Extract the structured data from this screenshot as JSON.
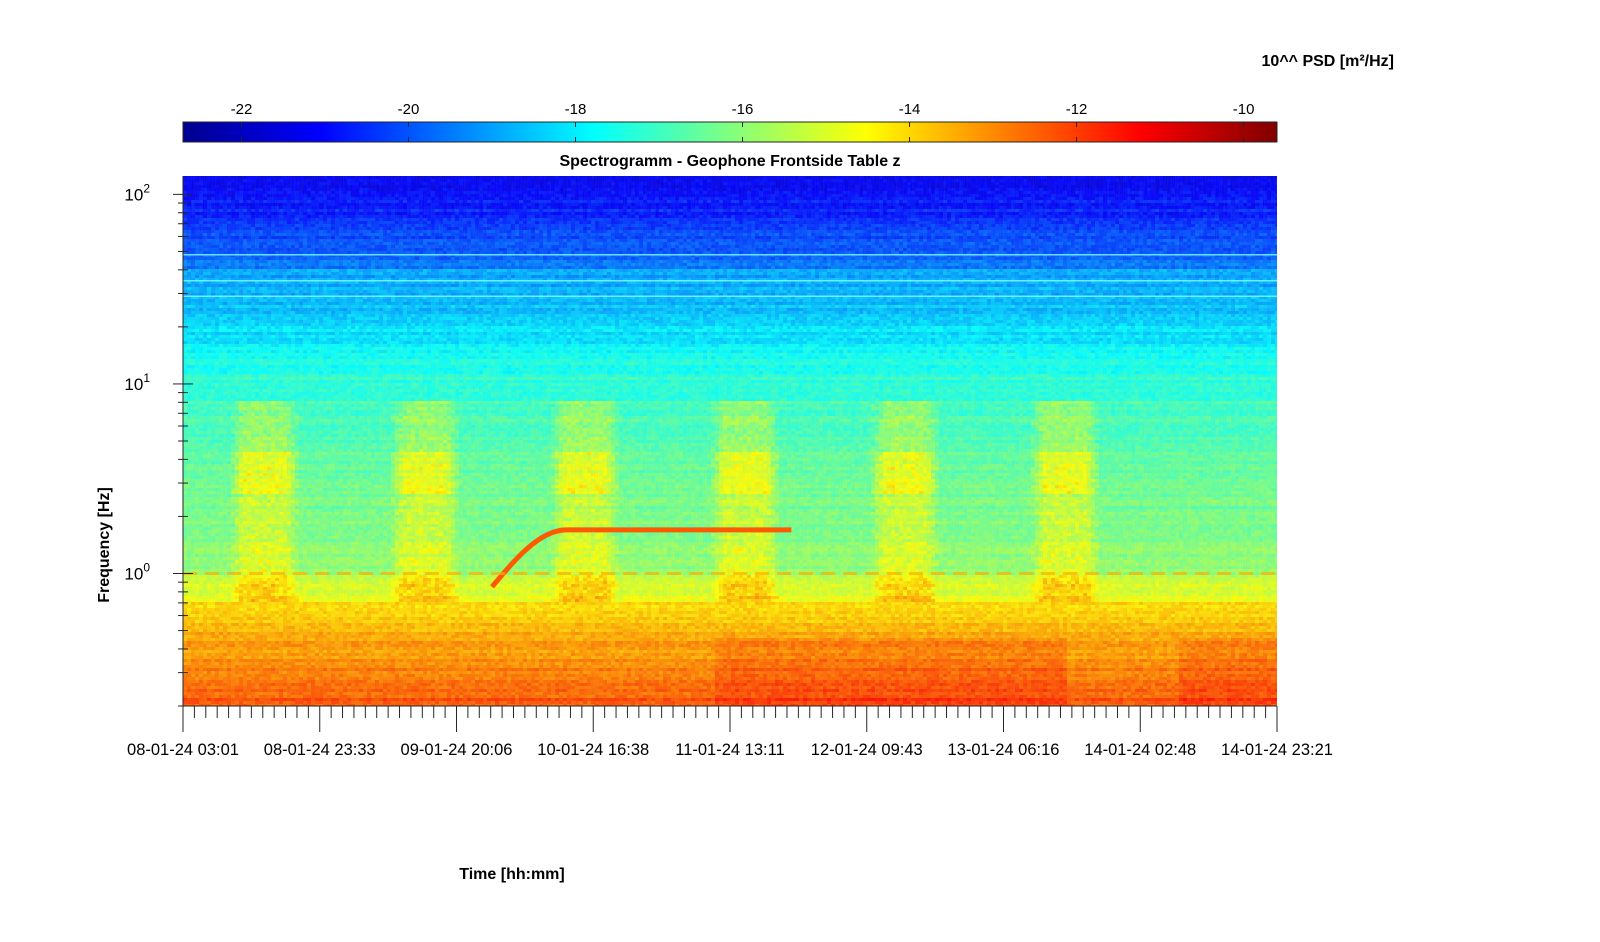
{
  "chart_data": {
    "type": "heatmap",
    "title": "Spectrogramm - Geophone Frontside Table z",
    "xlabel": "Time [hh:mm]",
    "ylabel": "Frequency [Hz]",
    "colorbar": {
      "label": "10^^ PSD [m²/Hz]",
      "range": [
        -22.7,
        -9.6
      ],
      "ticks": [
        -22,
        -20,
        -18,
        -16,
        -14,
        -12,
        -10
      ],
      "tick_labels": [
        "-22",
        "-20",
        "-18",
        "-16",
        "-14",
        "-12",
        "-10"
      ],
      "colormap": "jet",
      "placement": "top"
    },
    "x_axis": {
      "tick_labels": [
        "08-01-24 03:01",
        "08-01-24 23:33",
        "09-01-24 20:06",
        "10-01-24 16:38",
        "11-01-24 13:11",
        "12-01-24 09:43",
        "13-01-24 06:16",
        "14-01-24 02:48",
        "14-01-24 23:21"
      ],
      "minor_ticks_per_interval": 12
    },
    "y_axis": {
      "scale": "log",
      "range": [
        0.2,
        125
      ],
      "major_ticks": [
        1,
        10,
        100
      ],
      "major_tick_labels": [
        {
          "base": "10",
          "exp": "0"
        },
        {
          "base": "10",
          "exp": "1"
        },
        {
          "base": "10",
          "exp": "2"
        }
      ]
    },
    "features": {
      "daily_activity_bursts": [
        {
          "start_day": 0.28,
          "end_day": 0.72,
          "freq_range_hz": [
            0.7,
            8
          ]
        },
        {
          "start_day": 1.28,
          "end_day": 1.72,
          "freq_range_hz": [
            0.7,
            8
          ]
        },
        {
          "start_day": 2.28,
          "end_day": 2.72,
          "freq_range_hz": [
            0.7,
            8
          ]
        },
        {
          "start_day": 3.28,
          "end_day": 3.72,
          "freq_range_hz": [
            0.7,
            8
          ]
        },
        {
          "start_day": 4.28,
          "end_day": 4.72,
          "freq_range_hz": [
            0.7,
            8
          ]
        },
        {
          "start_day": 5.28,
          "end_day": 5.72,
          "freq_range_hz": [
            0.7,
            8
          ]
        }
      ],
      "tonal_line": {
        "start_day": 1.93,
        "ramp_end_day": 2.4,
        "end_day": 3.8,
        "start_freq_hz": 0.85,
        "freq_hz": 1.7
      },
      "low_frequency_band_hz": [
        0.2,
        0.7
      ]
    }
  },
  "colors": {
    "jet_stops": [
      "#00008f",
      "#0000ff",
      "#00ffff",
      "#ffff00",
      "#ff0000",
      "#800000"
    ],
    "axis": "#262626"
  }
}
